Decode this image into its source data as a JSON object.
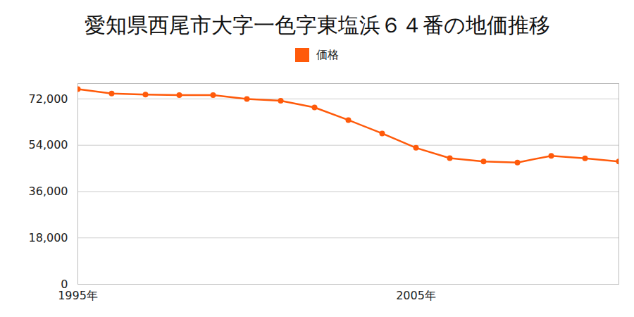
{
  "chart_data": {
    "type": "line",
    "title": "愛知県西尾市大字一色字東塩浜６４番の地価推移",
    "x": [
      1995,
      1996,
      1997,
      1998,
      1999,
      2000,
      2001,
      2002,
      2003,
      2004,
      2005,
      2006,
      2007,
      2008,
      2009,
      2010,
      2011
    ],
    "series": [
      {
        "name": "価格",
        "color": "#ff5a0a",
        "marker": "circle",
        "values": [
          75800,
          74100,
          73700,
          73500,
          73500,
          72000,
          71300,
          68700,
          63800,
          58600,
          53000,
          49000,
          47700,
          47300,
          49900,
          48900,
          47700
        ]
      }
    ],
    "xlim": [
      1995,
      2011
    ],
    "xticks": [
      {
        "value": 1995,
        "label": "1995年"
      },
      {
        "value": 2005,
        "label": "2005年"
      }
    ],
    "ylim": [
      0,
      78000
    ],
    "yticks": [
      0,
      {
        "value": 18000,
        "label": "18,000"
      },
      {
        "value": 36000,
        "label": "36,000"
      },
      {
        "value": 54000,
        "label": "54,000"
      },
      {
        "value": 72000,
        "label": "72,000"
      }
    ],
    "grid": true,
    "legend": "top"
  }
}
